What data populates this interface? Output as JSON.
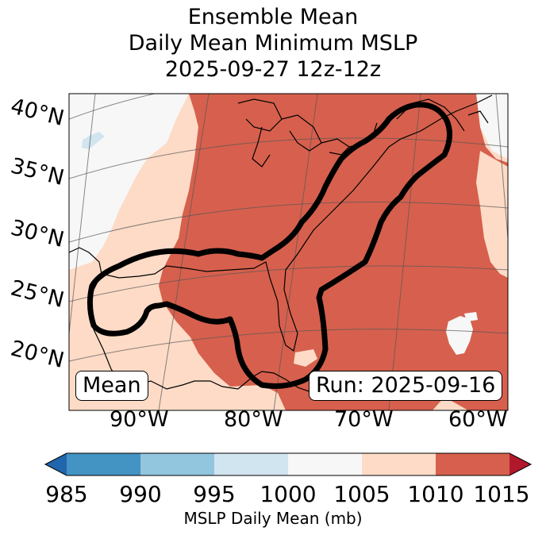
{
  "title": {
    "line1": "Ensemble Mean",
    "line2": "Daily Mean Minimum MSLP",
    "line3": "2025-09-27 12z-12z"
  },
  "map": {
    "region": "Eastern United States, Gulf of Mexico and western Atlantic",
    "lat_labels": [
      "40°N",
      "35°N",
      "30°N",
      "25°N",
      "20°N"
    ],
    "lon_labels": [
      "90°W",
      "80°W",
      "70°W",
      "60°W"
    ],
    "left_box": "Mean",
    "right_box": "Run: 2025-09-16",
    "contour_color": "#000000"
  },
  "colorbar": {
    "ticks": [
      "985",
      "990",
      "995",
      "1000",
      "1005",
      "1010",
      "1015"
    ],
    "label": "MSLP Daily Mean (mb)",
    "colors": {
      "under": "#2166ac",
      "985-990": "#4393c3",
      "990-995": "#92c5de",
      "995-1000": "#d1e5f0",
      "1000-1005": "#f7f7f7",
      "1005-1010": "#fddbc7",
      "1010-1015": "#d6604d",
      "over": "#b2182b"
    }
  }
}
